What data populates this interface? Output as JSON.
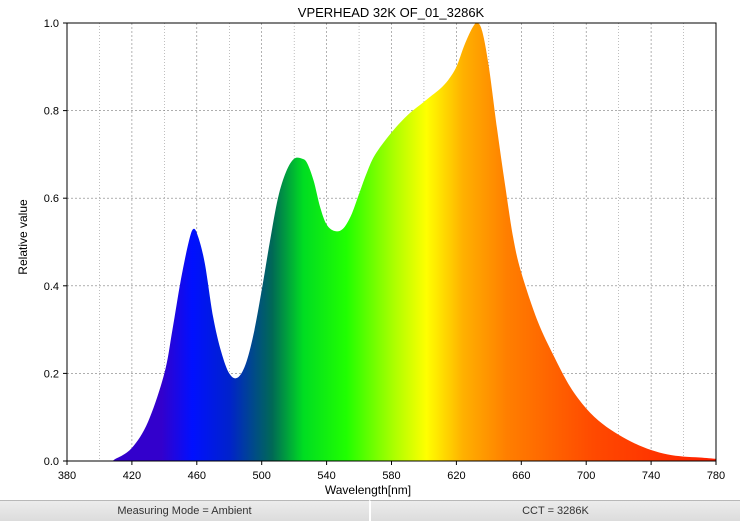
{
  "chart_data": {
    "type": "area",
    "title": "VPERHEAD 32K OF_01_3286K",
    "xlabel": "Wavelength[nm]",
    "ylabel": "Relative value",
    "xlim": [
      380,
      780
    ],
    "ylim": [
      0,
      1.0
    ],
    "x_ticks": [
      "380",
      "420",
      "460",
      "500",
      "540",
      "580",
      "620",
      "660",
      "700",
      "740",
      "780"
    ],
    "y_ticks": [
      "0.0",
      "0.2",
      "0.4",
      "0.6",
      "0.8",
      "1.0"
    ],
    "grid": true,
    "fill": "visible-spectrum gradient",
    "x": [
      380,
      405,
      410,
      420,
      430,
      440,
      445,
      450,
      455,
      458,
      461,
      465,
      470,
      475,
      480,
      485,
      490,
      495,
      500,
      505,
      510,
      515,
      520,
      525,
      528,
      532,
      536,
      540,
      545,
      550,
      555,
      560,
      565,
      570,
      580,
      590,
      600,
      605,
      610,
      615,
      620,
      625,
      630,
      633,
      636,
      640,
      645,
      650,
      655,
      660,
      670,
      680,
      690,
      700,
      710,
      720,
      730,
      740,
      750,
      760,
      770,
      780
    ],
    "y": [
      0,
      0,
      0.005,
      0.03,
      0.09,
      0.2,
      0.3,
      0.41,
      0.5,
      0.53,
      0.51,
      0.45,
      0.33,
      0.25,
      0.2,
      0.19,
      0.22,
      0.29,
      0.39,
      0.5,
      0.6,
      0.66,
      0.69,
      0.69,
      0.68,
      0.64,
      0.58,
      0.54,
      0.525,
      0.53,
      0.56,
      0.61,
      0.66,
      0.7,
      0.75,
      0.79,
      0.82,
      0.835,
      0.85,
      0.87,
      0.9,
      0.95,
      0.99,
      1.0,
      0.98,
      0.9,
      0.76,
      0.63,
      0.51,
      0.43,
      0.32,
      0.24,
      0.17,
      0.12,
      0.085,
      0.06,
      0.04,
      0.025,
      0.015,
      0.01,
      0.008,
      0.005
    ]
  },
  "status": {
    "mode": "Measuring Mode = Ambient",
    "cct": "CCT = 3286K"
  },
  "colors": {
    "grid": "#7f7f7f",
    "axis": "#000000",
    "status_bg": "#e3e3e3"
  }
}
